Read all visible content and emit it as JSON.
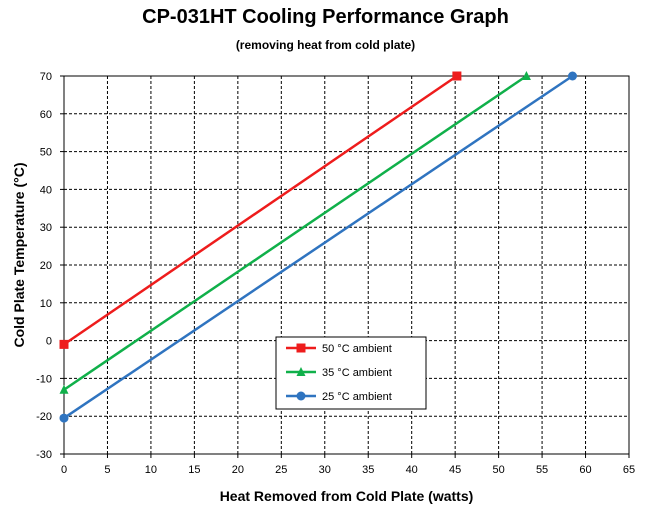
{
  "chart_data": {
    "type": "line",
    "title": "CP-031HT Cooling Performance Graph",
    "subtitle": "(removing heat from cold plate)",
    "xlabel": "Heat Removed from Cold Plate (watts)",
    "ylabel": "Cold Plate Temperature (°C)",
    "xlim": [
      0,
      65
    ],
    "ylim": [
      -30,
      70
    ],
    "xticks": [
      0,
      5,
      10,
      15,
      20,
      25,
      30,
      35,
      40,
      45,
      50,
      55,
      60,
      65
    ],
    "yticks": [
      -30,
      -20,
      -10,
      0,
      10,
      20,
      30,
      40,
      50,
      60,
      70
    ],
    "grid": true,
    "legend_position": "center-bottom",
    "series": [
      {
        "name": "50 °C ambient",
        "color": "#ee1c1c",
        "marker": "square",
        "x": [
          0,
          45.2
        ],
        "y": [
          -1,
          70
        ]
      },
      {
        "name": "35 °C ambient",
        "color": "#10b04a",
        "marker": "triangle",
        "x": [
          0,
          53.2
        ],
        "y": [
          -13,
          70
        ]
      },
      {
        "name": "25 °C ambient",
        "color": "#2f74c0",
        "marker": "circle",
        "x": [
          0,
          58.5
        ],
        "y": [
          -20.5,
          70
        ]
      }
    ]
  }
}
